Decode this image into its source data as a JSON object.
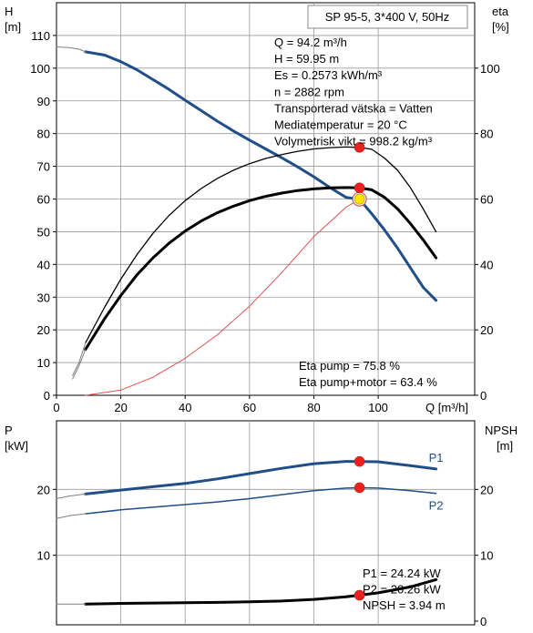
{
  "chart_data": [
    {
      "type": "line",
      "title": "SP 95-5, 3*400 V, 50Hz",
      "xlabel": "Q [m³/h]",
      "ylabel_left_top": "H",
      "ylabel_left_unit": "[m]",
      "ylabel_right_top": "eta",
      "ylabel_right_unit": "[%]",
      "xlim": [
        0,
        130
      ],
      "ylim_left": [
        0,
        120
      ],
      "ylim_right": [
        0,
        120
      ],
      "x_ticks": [
        0,
        20,
        40,
        60,
        80,
        100
      ],
      "y_ticks_left": [
        0,
        10,
        20,
        30,
        40,
        50,
        60,
        70,
        80,
        90,
        100,
        110
      ],
      "y_ticks_right": [
        0,
        20,
        40,
        60,
        80,
        100
      ],
      "grid": true,
      "info_lines": [
        "Q = 94.2 m³/h",
        "H = 59.95 m",
        "Es = 0.2573 kWh/m³",
        "n = 2882 rpm",
        "Transporterad vätska = Vatten",
        "Mediatemperatur = 20 °C",
        "Volymetrisk vikt = 998.2 kg/m³"
      ],
      "eta_lines": [
        "Eta pump = 75.8 %",
        "Eta pump+motor = 63.4 %"
      ],
      "series": [
        {
          "axis": "left",
          "color": "#1f4e89",
          "width": 3,
          "x": [
            9,
            15,
            20,
            25,
            30,
            35,
            40,
            45,
            50,
            55,
            60,
            65,
            70,
            75,
            80,
            85,
            90,
            94.2,
            98,
            102,
            106,
            110,
            114,
            118
          ],
          "values": [
            105,
            104,
            102,
            99.5,
            96.5,
            93.5,
            90.2,
            87,
            83.8,
            80.8,
            78,
            75.3,
            72.6,
            69.8,
            66.8,
            63.5,
            60.5,
            59.95,
            55.5,
            50.5,
            45,
            39,
            33,
            29
          ]
        },
        {
          "axis": "left",
          "color": "#808080",
          "width": 1,
          "x": [
            0,
            4,
            7,
            9
          ],
          "values": [
            106.5,
            106.3,
            105.8,
            105
          ]
        },
        {
          "axis": "right",
          "color": "#000000",
          "width": 1.3,
          "x": [
            9,
            15,
            20,
            25,
            30,
            35,
            40,
            45,
            50,
            55,
            60,
            65,
            70,
            75,
            80,
            85,
            90,
            94.2,
            98,
            102,
            106,
            110,
            114,
            118
          ],
          "values": [
            16,
            27,
            35.5,
            43,
            49.5,
            55,
            59.5,
            63.2,
            66.3,
            68.8,
            70.8,
            72.4,
            73.6,
            74.6,
            75.3,
            75.7,
            75.9,
            75.8,
            75.2,
            72.5,
            68.8,
            63.5,
            57,
            50
          ]
        },
        {
          "axis": "right",
          "color": "#808080",
          "width": 1,
          "x": [
            5,
            7,
            9
          ],
          "values": [
            6,
            10,
            16
          ]
        },
        {
          "axis": "right",
          "color": "#000000",
          "width": 3,
          "x": [
            9,
            15,
            20,
            25,
            30,
            35,
            40,
            45,
            50,
            55,
            60,
            65,
            70,
            75,
            80,
            85,
            90,
            94.2,
            98,
            102,
            106,
            110,
            114,
            118
          ],
          "values": [
            14,
            23.5,
            30.5,
            36.8,
            42,
            46.5,
            50.2,
            53.3,
            55.8,
            57.8,
            59.5,
            60.8,
            61.8,
            62.6,
            63.1,
            63.4,
            63.5,
            63.4,
            62.8,
            60.5,
            57,
            52.5,
            47.5,
            42
          ]
        },
        {
          "axis": "right",
          "color": "#808080",
          "width": 1,
          "x": [
            5,
            7,
            9
          ],
          "values": [
            5,
            9,
            14
          ]
        },
        {
          "axis": "left",
          "color": "#e05050",
          "width": 1,
          "x": [
            9,
            20,
            30,
            40,
            50,
            60,
            70,
            80,
            90,
            94.2
          ],
          "values": [
            0,
            1.6,
            5.5,
            11.3,
            18.5,
            27.2,
            37.5,
            48.5,
            57.5,
            59.95
          ]
        }
      ],
      "points": [
        {
          "x": 94.2,
          "axis": "left",
          "value": 59.95,
          "style": "yellow"
        },
        {
          "x": 94.2,
          "axis": "right",
          "value": 75.8,
          "style": "red"
        },
        {
          "x": 94.2,
          "axis": "right",
          "value": 63.4,
          "style": "red"
        }
      ]
    },
    {
      "type": "line",
      "ylabel_left_top": "P",
      "ylabel_left_unit": "[kW]",
      "ylabel_right_top": "NPSH",
      "ylabel_right_unit": "[m]",
      "xlim": [
        0,
        130
      ],
      "ylim_left": [
        0,
        30
      ],
      "ylim_right": [
        0,
        30
      ],
      "y_ticks_left": [
        10,
        20
      ],
      "y_ticks_right": [
        0,
        10,
        20
      ],
      "grid": true,
      "value_lines": [
        "P1 = 24.24 kW",
        "P2 = 20.26 kW",
        "NPSH = 3.94 m"
      ],
      "series": [
        {
          "name": "P1",
          "axis": "left",
          "color": "#1f4e89",
          "width": 3,
          "x": [
            9,
            20,
            30,
            40,
            50,
            60,
            70,
            80,
            90,
            94.2,
            100,
            110,
            118
          ],
          "values": [
            19.3,
            19.9,
            20.4,
            20.9,
            21.6,
            22.4,
            23.2,
            23.9,
            24.25,
            24.24,
            24.2,
            23.6,
            23.1
          ]
        },
        {
          "name": "P2",
          "axis": "left",
          "color": "#1f4e89",
          "width": 1.5,
          "x": [
            9,
            20,
            30,
            40,
            50,
            60,
            70,
            80,
            90,
            94.2,
            100,
            110,
            118
          ],
          "values": [
            16.3,
            16.9,
            17.3,
            17.7,
            18.1,
            18.6,
            19.2,
            19.8,
            20.2,
            20.26,
            20.2,
            19.8,
            19.4
          ]
        },
        {
          "axis": "right",
          "color": "#000000",
          "width": 3,
          "x": [
            9,
            20,
            30,
            40,
            50,
            60,
            70,
            80,
            90,
            94.2,
            100,
            110,
            118
          ],
          "values": [
            2.6,
            2.7,
            2.75,
            2.8,
            2.85,
            2.95,
            3.05,
            3.3,
            3.7,
            3.94,
            4.3,
            5.2,
            6.3
          ]
        },
        {
          "axis": "left",
          "color": "#808080",
          "width": 1,
          "x": [
            0,
            4,
            9
          ],
          "values": [
            18.6,
            19,
            19.3
          ]
        },
        {
          "axis": "left",
          "color": "#808080",
          "width": 1,
          "x": [
            0,
            4,
            9
          ],
          "values": [
            15.6,
            16,
            16.3
          ]
        },
        {
          "axis": "right",
          "color": "#808080",
          "width": 1,
          "x": [
            0,
            9
          ],
          "values": [
            2.6,
            2.6
          ]
        }
      ],
      "points": [
        {
          "x": 94.2,
          "axis": "left",
          "value": 24.24,
          "style": "red"
        },
        {
          "x": 94.2,
          "axis": "left",
          "value": 20.26,
          "style": "red"
        },
        {
          "x": 94.2,
          "axis": "right",
          "value": 3.94,
          "style": "red"
        }
      ]
    }
  ]
}
